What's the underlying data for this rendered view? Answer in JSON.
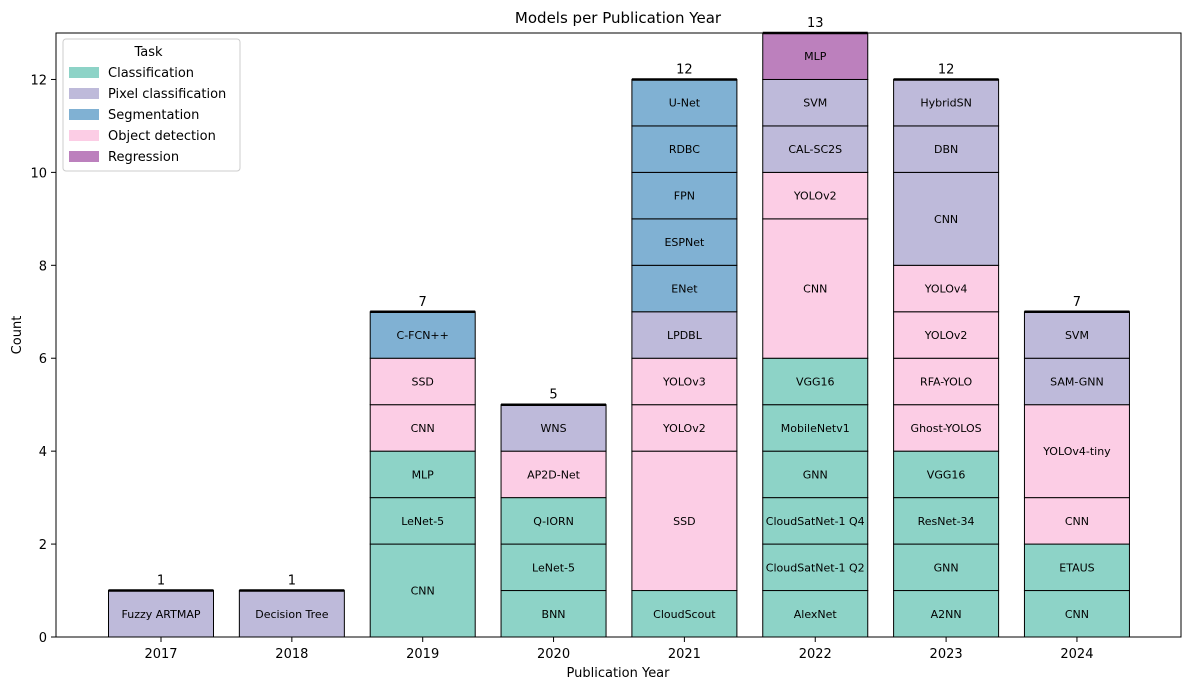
{
  "chart_data": {
    "type": "bar",
    "stacked": true,
    "title": "Models per Publication Year",
    "xlabel": "Publication Year",
    "ylabel": "Count",
    "ylim": [
      0,
      13
    ],
    "yticks": [
      0,
      2,
      4,
      6,
      8,
      10,
      12
    ],
    "grid": false,
    "categories": [
      "2017",
      "2018",
      "2019",
      "2020",
      "2021",
      "2022",
      "2023",
      "2024"
    ],
    "totals": [
      1,
      1,
      7,
      5,
      12,
      13,
      12,
      7
    ],
    "legend": {
      "title": "Task",
      "placement": "top-left",
      "entries": [
        {
          "name": "Classification",
          "color": "#8dd3c7"
        },
        {
          "name": "Pixel classification",
          "color": "#bebada"
        },
        {
          "name": "Segmentation",
          "color": "#80b1d3"
        },
        {
          "name": "Object detection",
          "color": "#fccde5"
        },
        {
          "name": "Regression",
          "color": "#bc80bd"
        }
      ]
    },
    "stacks": [
      {
        "year": "2017",
        "segments": [
          {
            "label": "Fuzzy ARTMAP",
            "task": "Pixel classification",
            "value": 1
          }
        ]
      },
      {
        "year": "2018",
        "segments": [
          {
            "label": "Decision Tree",
            "task": "Pixel classification",
            "value": 1
          }
        ]
      },
      {
        "year": "2019",
        "segments": [
          {
            "label": "CNN",
            "task": "Classification",
            "value": 2
          },
          {
            "label": "LeNet-5",
            "task": "Classification",
            "value": 1
          },
          {
            "label": "MLP",
            "task": "Classification",
            "value": 1
          },
          {
            "label": "CNN",
            "task": "Object detection",
            "value": 1
          },
          {
            "label": "SSD",
            "task": "Object detection",
            "value": 1
          },
          {
            "label": "C-FCN++",
            "task": "Segmentation",
            "value": 1
          }
        ]
      },
      {
        "year": "2020",
        "segments": [
          {
            "label": "BNN",
            "task": "Classification",
            "value": 1
          },
          {
            "label": "LeNet-5",
            "task": "Classification",
            "value": 1
          },
          {
            "label": "Q-IORN",
            "task": "Classification",
            "value": 1
          },
          {
            "label": "AP2D-Net",
            "task": "Object detection",
            "value": 1
          },
          {
            "label": "WNS",
            "task": "Pixel classification",
            "value": 1
          }
        ]
      },
      {
        "year": "2021",
        "segments": [
          {
            "label": "CloudScout",
            "task": "Classification",
            "value": 1
          },
          {
            "label": "SSD",
            "task": "Object detection",
            "value": 3
          },
          {
            "label": "YOLOv2",
            "task": "Object detection",
            "value": 1
          },
          {
            "label": "YOLOv3",
            "task": "Object detection",
            "value": 1
          },
          {
            "label": "LPDBL",
            "task": "Pixel classification",
            "value": 1
          },
          {
            "label": "ENet",
            "task": "Segmentation",
            "value": 1
          },
          {
            "label": "ESPNet",
            "task": "Segmentation",
            "value": 1
          },
          {
            "label": "FPN",
            "task": "Segmentation",
            "value": 1
          },
          {
            "label": "RDBC",
            "task": "Segmentation",
            "value": 1
          },
          {
            "label": "U-Net",
            "task": "Segmentation",
            "value": 1
          }
        ]
      },
      {
        "year": "2022",
        "segments": [
          {
            "label": "AlexNet",
            "task": "Classification",
            "value": 1
          },
          {
            "label": "CloudSatNet-1 Q2",
            "task": "Classification",
            "value": 1
          },
          {
            "label": "CloudSatNet-1 Q4",
            "task": "Classification",
            "value": 1
          },
          {
            "label": "GNN",
            "task": "Classification",
            "value": 1
          },
          {
            "label": "MobileNetv1",
            "task": "Classification",
            "value": 1
          },
          {
            "label": "VGG16",
            "task": "Classification",
            "value": 1
          },
          {
            "label": "CNN",
            "task": "Object detection",
            "value": 3
          },
          {
            "label": "YOLOv2",
            "task": "Object detection",
            "value": 1
          },
          {
            "label": "CAL-SC2S",
            "task": "Pixel classification",
            "value": 1
          },
          {
            "label": "SVM",
            "task": "Pixel classification",
            "value": 1
          },
          {
            "label": "MLP",
            "task": "Regression",
            "value": 1
          }
        ]
      },
      {
        "year": "2023",
        "segments": [
          {
            "label": "A2NN",
            "task": "Classification",
            "value": 1
          },
          {
            "label": "GNN",
            "task": "Classification",
            "value": 1
          },
          {
            "label": "ResNet-34",
            "task": "Classification",
            "value": 1
          },
          {
            "label": "VGG16",
            "task": "Classification",
            "value": 1
          },
          {
            "label": "Ghost-YOLOS",
            "task": "Object detection",
            "value": 1
          },
          {
            "label": "RFA-YOLO",
            "task": "Object detection",
            "value": 1
          },
          {
            "label": "YOLOv2",
            "task": "Object detection",
            "value": 1
          },
          {
            "label": "YOLOv4",
            "task": "Object detection",
            "value": 1
          },
          {
            "label": "CNN",
            "task": "Pixel classification",
            "value": 2
          },
          {
            "label": "DBN",
            "task": "Pixel classification",
            "value": 1
          },
          {
            "label": "HybridSN",
            "task": "Pixel classification",
            "value": 1
          }
        ]
      },
      {
        "year": "2024",
        "segments": [
          {
            "label": "CNN",
            "task": "Classification",
            "value": 1
          },
          {
            "label": "ETAUS",
            "task": "Classification",
            "value": 1
          },
          {
            "label": "CNN",
            "task": "Object detection",
            "value": 1
          },
          {
            "label": "YOLOv4-tiny",
            "task": "Object detection",
            "value": 2
          },
          {
            "label": "SAM-GNN",
            "task": "Pixel classification",
            "value": 1
          },
          {
            "label": "SVM",
            "task": "Pixel classification",
            "value": 1
          }
        ]
      }
    ]
  }
}
